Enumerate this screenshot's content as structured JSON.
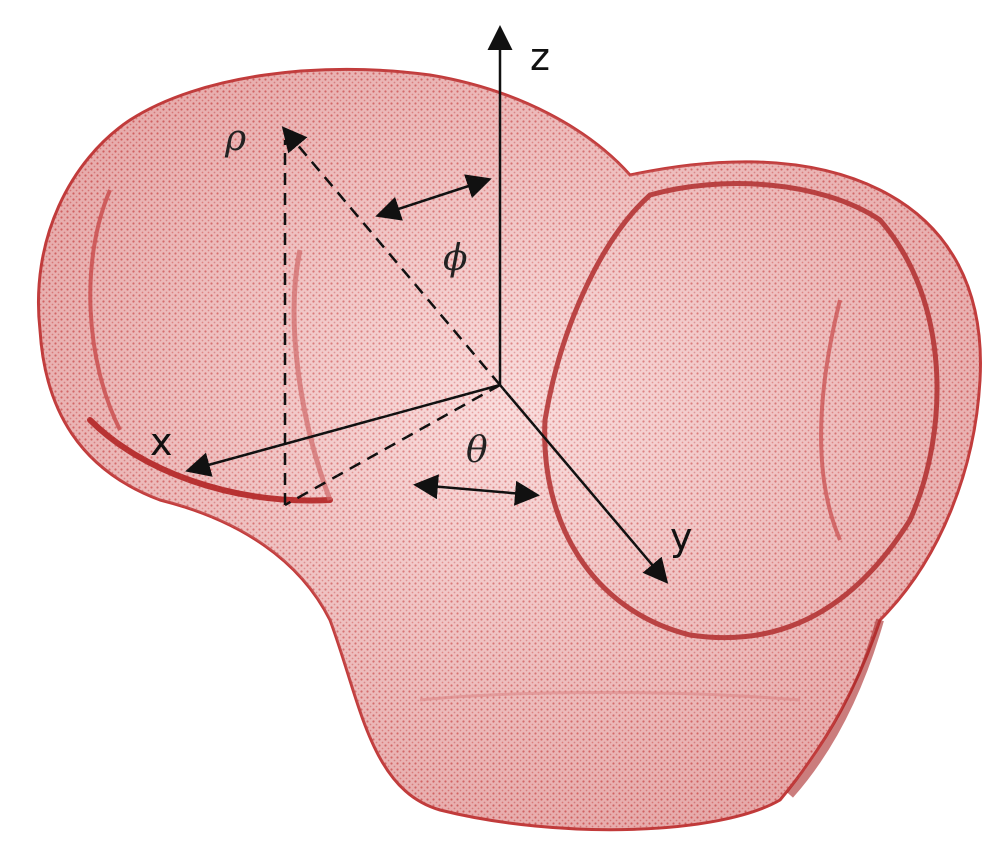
{
  "figure": {
    "labels": {
      "z": "z",
      "x": "x",
      "y": "y",
      "rho": "ρ",
      "phi": "ϕ",
      "theta": "θ"
    },
    "colors": {
      "bone_fill": "#f0b9b9",
      "bone_stroke": "#c23b3b",
      "axis_color": "#222222"
    }
  }
}
